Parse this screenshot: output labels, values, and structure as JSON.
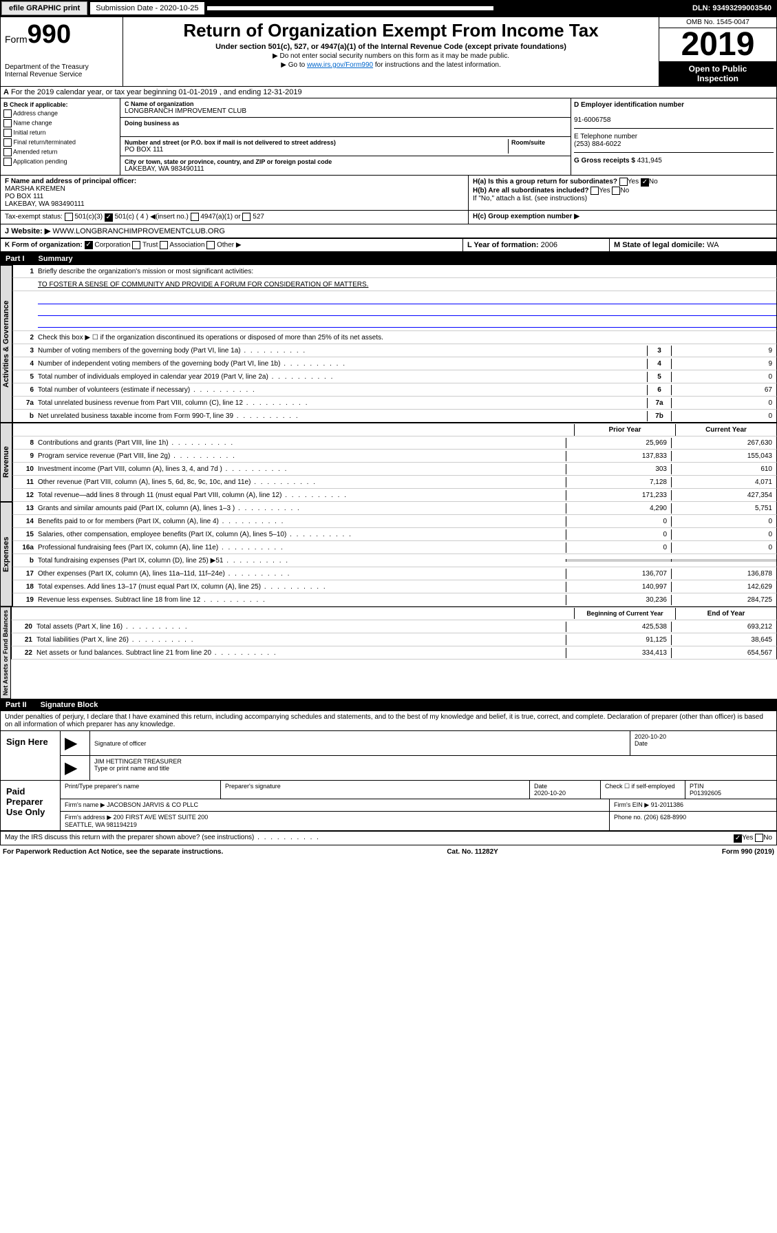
{
  "topbar": {
    "efile": "efile GRAPHIC print",
    "subdate_lbl": "Submission Date - 2020-10-25",
    "dln": "DLN: 93493299003540"
  },
  "header": {
    "form": "Form",
    "num": "990",
    "dept": "Department of the Treasury\nInternal Revenue Service",
    "title": "Return of Organization Exempt From Income Tax",
    "sub": "Under section 501(c), 527, or 4947(a)(1) of the Internal Revenue Code (except private foundations)",
    "note1": "▶ Do not enter social security numbers on this form as it may be made public.",
    "note2": "▶ Go to www.irs.gov/Form990 for instructions and the latest information.",
    "omb": "OMB No. 1545-0047",
    "year": "2019",
    "open": "Open to Public",
    "inspect": "Inspection"
  },
  "rowA": "For the 2019 calendar year, or tax year beginning 01-01-2019   , and ending 12-31-2019",
  "colB": {
    "hdr": "B Check if applicable:",
    "items": [
      "Address change",
      "Name change",
      "Initial return",
      "Final return/terminated",
      "Amended return",
      "Application pending"
    ]
  },
  "colC": {
    "name_lbl": "C Name of organization",
    "name": "LONGBRANCH IMPROVEMENT CLUB",
    "dba_lbl": "Doing business as",
    "addr_lbl": "Number and street (or P.O. box if mail is not delivered to street address)",
    "addr": "PO BOX 111",
    "room_lbl": "Room/suite",
    "city_lbl": "City or town, state or province, country, and ZIP or foreign postal code",
    "city": "LAKEBAY, WA  983490111"
  },
  "colD": {
    "lbl": "D Employer identification number",
    "val": "91-6006758"
  },
  "colE": {
    "lbl": "E Telephone number",
    "val": "(253) 884-6022"
  },
  "colG": {
    "lbl": "G Gross receipts $",
    "val": "431,945"
  },
  "rowF": {
    "lbl": "F  Name and address of principal officer:",
    "name": "MARSHA KREMEN",
    "addr": "PO BOX 111\nLAKEBAY, WA  983490111"
  },
  "rowH": {
    "a": "H(a)  Is this a group return for subordinates?",
    "b": "H(b)  Are all subordinates included?",
    "note": "If \"No,\" attach a list. (see instructions)",
    "c": "H(c)  Group exemption number ▶"
  },
  "rowI": "Tax-exempt status:",
  "rowJ": {
    "lbl": "J",
    "txt": "Website: ▶",
    "val": "WWW.LONGBRANCHIMPROVEMENTCLUB.ORG"
  },
  "rowK": "K Form of organization:",
  "rowL": {
    "lbl": "L Year of formation:",
    "val": "2006"
  },
  "rowM": {
    "lbl": "M State of legal domicile:",
    "val": "WA"
  },
  "part1": {
    "num": "Part I",
    "title": "Summary"
  },
  "lines": {
    "l1": "Briefly describe the organization's mission or most significant activities:",
    "l1val": "TO FOSTER A SENSE OF COMMUNITY AND PROVIDE A FORUM FOR CONSIDERATION OF MATTERS.",
    "l2": "Check this box ▶ ☐  if the organization discontinued its operations or disposed of more than 25% of its net assets.",
    "l3": {
      "t": "Number of voting members of the governing body (Part VI, line 1a)",
      "v": "9"
    },
    "l4": {
      "t": "Number of independent voting members of the governing body (Part VI, line 1b)",
      "v": "9"
    },
    "l5": {
      "t": "Total number of individuals employed in calendar year 2019 (Part V, line 2a)",
      "v": "0"
    },
    "l6": {
      "t": "Total number of volunteers (estimate if necessary)",
      "v": "67"
    },
    "l7a": {
      "t": "Total unrelated business revenue from Part VIII, column (C), line 12",
      "v": "0"
    },
    "l7b": {
      "t": "Net unrelated business taxable income from Form 990-T, line 39",
      "v": "0"
    }
  },
  "table": {
    "hdr_prior": "Prior Year",
    "hdr_curr": "Current Year",
    "rows": [
      {
        "n": "8",
        "t": "Contributions and grants (Part VIII, line 1h)",
        "p": "25,969",
        "c": "267,630"
      },
      {
        "n": "9",
        "t": "Program service revenue (Part VIII, line 2g)",
        "p": "137,833",
        "c": "155,043"
      },
      {
        "n": "10",
        "t": "Investment income (Part VIII, column (A), lines 3, 4, and 7d )",
        "p": "303",
        "c": "610"
      },
      {
        "n": "11",
        "t": "Other revenue (Part VIII, column (A), lines 5, 6d, 8c, 9c, 10c, and 11e)",
        "p": "7,128",
        "c": "4,071"
      },
      {
        "n": "12",
        "t": "Total revenue—add lines 8 through 11 (must equal Part VIII, column (A), line 12)",
        "p": "171,233",
        "c": "427,354"
      },
      {
        "n": "13",
        "t": "Grants and similar amounts paid (Part IX, column (A), lines 1–3 )",
        "p": "4,290",
        "c": "5,751"
      },
      {
        "n": "14",
        "t": "Benefits paid to or for members (Part IX, column (A), line 4)",
        "p": "0",
        "c": "0"
      },
      {
        "n": "15",
        "t": "Salaries, other compensation, employee benefits (Part IX, column (A), lines 5–10)",
        "p": "0",
        "c": "0"
      },
      {
        "n": "16a",
        "t": "Professional fundraising fees (Part IX, column (A), line 11e)",
        "p": "0",
        "c": "0"
      },
      {
        "n": "b",
        "t": "Total fundraising expenses (Part IX, column (D), line 25) ▶51",
        "p": "",
        "c": "",
        "shade": true
      },
      {
        "n": "17",
        "t": "Other expenses (Part IX, column (A), lines 11a–11d, 11f–24e)",
        "p": "136,707",
        "c": "136,878"
      },
      {
        "n": "18",
        "t": "Total expenses. Add lines 13–17 (must equal Part IX, column (A), line 25)",
        "p": "140,997",
        "c": "142,629"
      },
      {
        "n": "19",
        "t": "Revenue less expenses. Subtract line 18 from line 12",
        "p": "30,236",
        "c": "284,725"
      }
    ],
    "hdr_beg": "Beginning of Current Year",
    "hdr_end": "End of Year",
    "net": [
      {
        "n": "20",
        "t": "Total assets (Part X, line 16)",
        "p": "425,538",
        "c": "693,212"
      },
      {
        "n": "21",
        "t": "Total liabilities (Part X, line 26)",
        "p": "91,125",
        "c": "38,645"
      },
      {
        "n": "22",
        "t": "Net assets or fund balances. Subtract line 21 from line 20",
        "p": "334,413",
        "c": "654,567"
      }
    ]
  },
  "sides": {
    "s1": "Activities & Governance",
    "s2": "Revenue",
    "s3": "Expenses",
    "s4": "Net Assets or Fund Balances"
  },
  "part2": {
    "num": "Part II",
    "title": "Signature Block"
  },
  "perjury": "Under penalties of perjury, I declare that I have examined this return, including accompanying schedules and statements, and to the best of my knowledge and belief, it is true, correct, and complete. Declaration of preparer (other than officer) is based on all information of which preparer has any knowledge.",
  "sign": {
    "here": "Sign Here",
    "sig_lbl": "Signature of officer",
    "date": "2020-10-20",
    "date_lbl": "Date",
    "name": "JIM HETTINGER  TREASURER",
    "name_lbl": "Type or print name and title"
  },
  "paid": {
    "lbl": "Paid Preparer Use Only",
    "prep_lbl": "Print/Type preparer's name",
    "sig_lbl": "Preparer's signature",
    "date_lbl": "Date",
    "date": "2020-10-20",
    "chk_lbl": "Check ☐ if self-employed",
    "ptin_lbl": "PTIN",
    "ptin": "P01392605",
    "firm_lbl": "Firm's name    ▶",
    "firm": "JACOBSON JARVIS & CO PLLC",
    "ein_lbl": "Firm's EIN ▶",
    "ein": "91-2011386",
    "addr_lbl": "Firm's address ▶",
    "addr": "200 FIRST AVE WEST SUITE 200\nSEATTLE, WA  981194219",
    "phone_lbl": "Phone no.",
    "phone": "(206) 628-8990"
  },
  "discuss": "May the IRS discuss this return with the preparer shown above? (see instructions)",
  "footer": {
    "l": "For Paperwork Reduction Act Notice, see the separate instructions.",
    "c": "Cat. No. 11282Y",
    "r": "Form 990 (2019)"
  }
}
